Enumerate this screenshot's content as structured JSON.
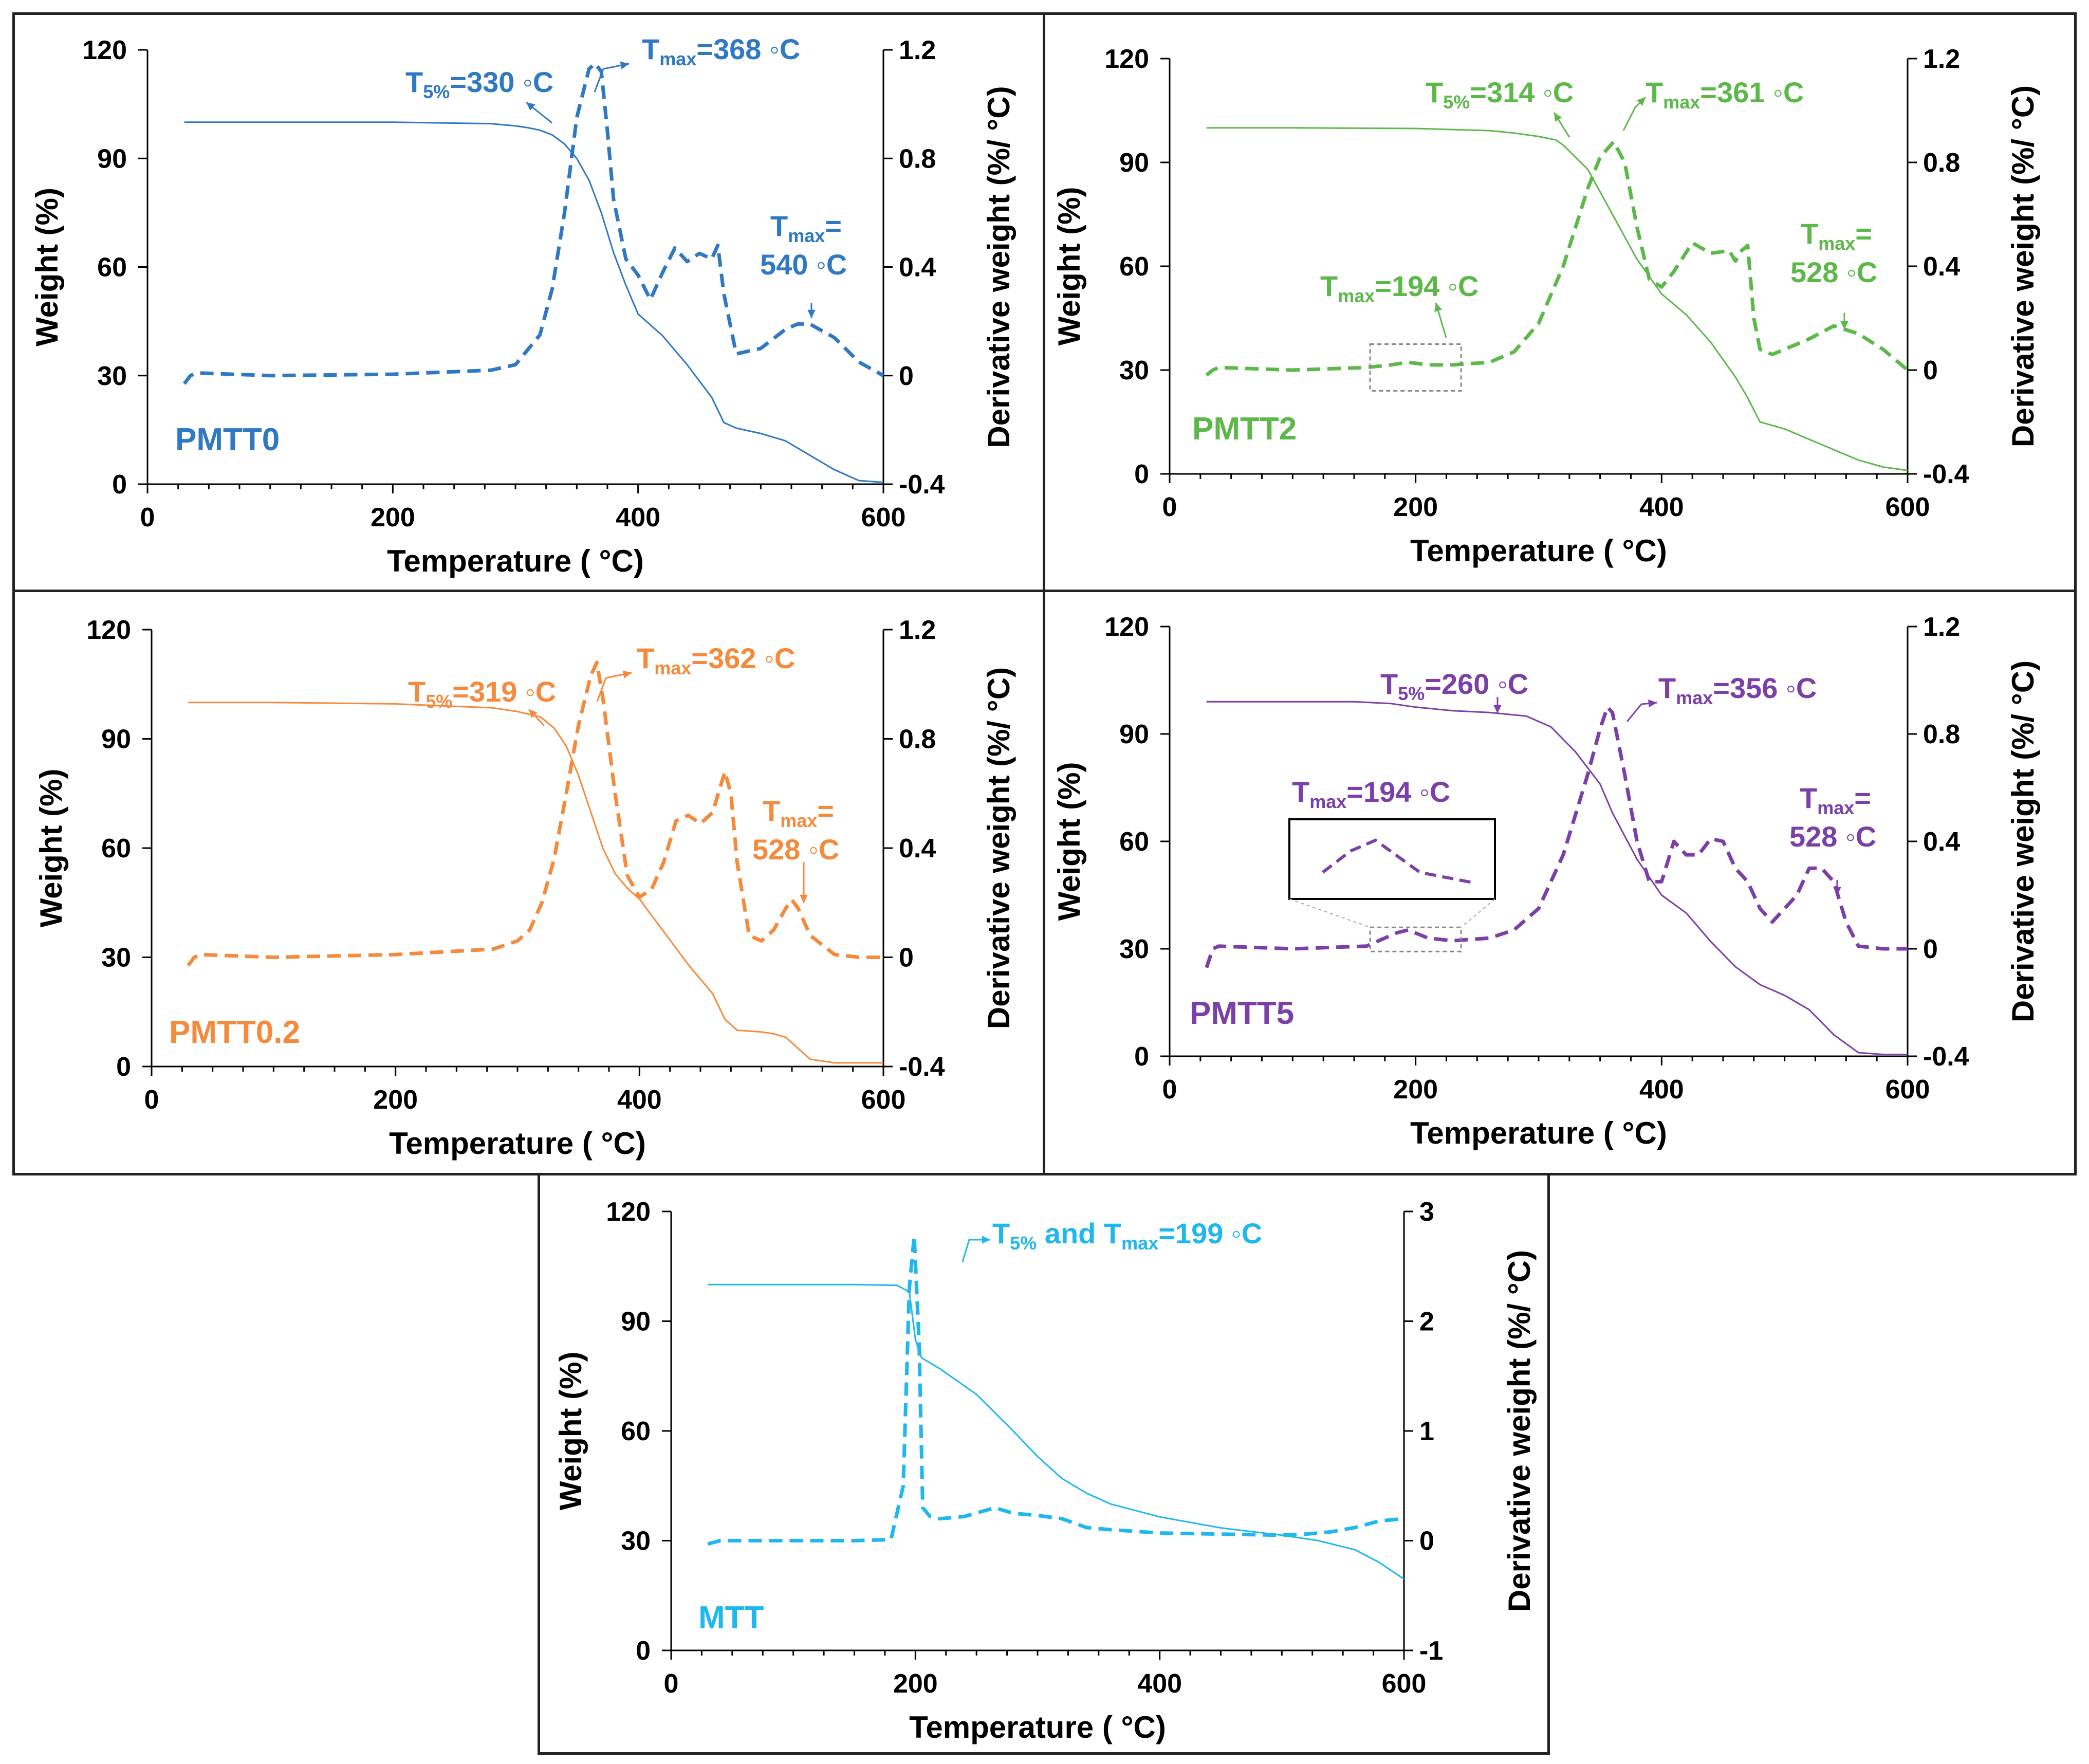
{
  "chart_data": [
    {
      "type": "line",
      "sample": "PMTT0",
      "color": "#2F78C4",
      "xlabel": "Temperature ( °C)",
      "ylabel": "Weight (%)",
      "y2label": "Derivative weight (%/ °C)",
      "xlim": [
        0,
        600
      ],
      "ylim": [
        0,
        120
      ],
      "y2lim": [
        -0.4,
        1.2
      ],
      "xticks": [
        0,
        200,
        400,
        600
      ],
      "yticks": [
        0,
        30,
        60,
        90,
        120
      ],
      "y2ticks": [
        -0.4,
        0,
        0.4,
        0.8,
        1.2
      ],
      "xtick_labels": [
        "0",
        "200",
        "400",
        "600"
      ],
      "ytick_labels": [
        "0",
        "30",
        "60",
        "90",
        "120"
      ],
      "y2tick_labels": [
        "-0.4",
        "0",
        "0.4",
        "0.8",
        "1.2"
      ],
      "series": [
        {
          "name": "Weight",
          "axis": "left",
          "style": "solid",
          "x": [
            30,
            100,
            200,
            280,
            300,
            310,
            320,
            330,
            340,
            350,
            360,
            370,
            380,
            390,
            400,
            420,
            440,
            460,
            470,
            480,
            500,
            520,
            540,
            560,
            580,
            600
          ],
          "values": [
            100,
            100,
            100,
            99.6,
            99,
            98.5,
            97.8,
            96.5,
            94,
            90,
            84,
            75,
            64,
            55,
            47,
            41,
            33,
            24,
            17,
            15.5,
            14,
            12,
            8,
            4,
            1,
            0.5
          ]
        },
        {
          "name": "Derivative weight",
          "axis": "right",
          "style": "dashed",
          "x": [
            30,
            35,
            40,
            100,
            200,
            280,
            300,
            320,
            330,
            340,
            350,
            360,
            365,
            370,
            375,
            380,
            390,
            400,
            410,
            420,
            430,
            440,
            450,
            460,
            465,
            470,
            480,
            500,
            520,
            530,
            540,
            560,
            580,
            600
          ],
          "values": [
            -0.03,
            0,
            0.01,
            0,
            0.005,
            0.02,
            0.04,
            0.15,
            0.32,
            0.6,
            0.95,
            1.13,
            1.15,
            1.12,
            0.9,
            0.65,
            0.43,
            0.37,
            0.28,
            0.38,
            0.47,
            0.42,
            0.45,
            0.43,
            0.48,
            0.3,
            0.08,
            0.1,
            0.17,
            0.19,
            0.19,
            0.14,
            0.05,
            0.0
          ]
        }
      ],
      "annotations": [
        {
          "base": "T",
          "sub": "5%",
          "rest": "=330 ◦C"
        },
        {
          "base": "T",
          "sub": "max",
          "rest": "=368 ◦C"
        },
        {
          "base": "T",
          "sub": "max",
          "rest": "=",
          "line2": "540 ◦C"
        }
      ]
    },
    {
      "type": "line",
      "sample": "PMTT2",
      "color": "#5DB84A",
      "xlabel": "Temperature ( °C)",
      "ylabel": "Weight (%)",
      "y2label": "Derivative weight (%/ °C)",
      "xlim": [
        0,
        600
      ],
      "ylim": [
        0,
        120
      ],
      "y2lim": [
        -0.4,
        1.2
      ],
      "xticks": [
        0,
        200,
        400,
        600
      ],
      "yticks": [
        0,
        30,
        60,
        90,
        120
      ],
      "y2ticks": [
        -0.4,
        0,
        0.4,
        0.8,
        1.2
      ],
      "xtick_labels": [
        "0",
        "200",
        "400",
        "600"
      ],
      "ytick_labels": [
        "0",
        "30",
        "60",
        "90",
        "120"
      ],
      "y2tick_labels": [
        "-0.4",
        "0",
        "0.4",
        "0.8",
        "1.2"
      ],
      "series": [
        {
          "name": "Weight",
          "axis": "left",
          "style": "solid",
          "x": [
            30,
            100,
            200,
            260,
            280,
            300,
            314,
            320,
            340,
            360,
            380,
            400,
            420,
            440,
            460,
            470,
            480,
            500,
            520,
            540,
            560,
            580,
            600
          ],
          "values": [
            100,
            100,
            99.8,
            99.2,
            98.5,
            97.5,
            96.5,
            95,
            88,
            75,
            62,
            52,
            46,
            38,
            28,
            22,
            15,
            13,
            10,
            7,
            4,
            2,
            1
          ]
        },
        {
          "name": "Derivative weight",
          "axis": "right",
          "style": "dashed",
          "x": [
            30,
            35,
            40,
            100,
            160,
            180,
            194,
            210,
            230,
            260,
            280,
            300,
            320,
            340,
            350,
            361,
            370,
            380,
            390,
            400,
            410,
            425,
            440,
            455,
            460,
            465,
            470,
            475,
            480,
            490,
            500,
            520,
            540,
            560,
            580,
            600
          ],
          "values": [
            -0.02,
            0,
            0.01,
            0.0,
            0.01,
            0.02,
            0.03,
            0.02,
            0.02,
            0.03,
            0.07,
            0.18,
            0.4,
            0.7,
            0.82,
            0.88,
            0.8,
            0.55,
            0.35,
            0.32,
            0.38,
            0.49,
            0.45,
            0.46,
            0.42,
            0.46,
            0.48,
            0.2,
            0.08,
            0.06,
            0.08,
            0.12,
            0.17,
            0.14,
            0.08,
            0.0
          ]
        }
      ],
      "annotations": [
        {
          "base": "T",
          "sub": "5%",
          "rest": "=314 ◦C"
        },
        {
          "base": "T",
          "sub": "max",
          "rest": "=361 ◦C"
        },
        {
          "base": "T",
          "sub": "max",
          "rest": "=194 ◦C"
        },
        {
          "base": "T",
          "sub": "max",
          "rest": "=",
          "line2": "528 ◦C"
        }
      ]
    },
    {
      "type": "line",
      "sample": "PMTT0.2",
      "color": "#F58A3C",
      "xlabel": "Temperature ( °C)",
      "ylabel": "Weight (%)",
      "y2label": "Derivative weight (%/ °C)",
      "xlim": [
        0,
        600
      ],
      "ylim": [
        0,
        120
      ],
      "y2lim": [
        -0.4,
        1.2
      ],
      "xticks": [
        0,
        200,
        400,
        600
      ],
      "yticks": [
        0,
        30,
        60,
        90,
        120
      ],
      "y2ticks": [
        -0.4,
        0,
        0.4,
        0.8,
        1.2
      ],
      "xtick_labels": [
        "0",
        "200",
        "400",
        "600"
      ],
      "ytick_labels": [
        "0",
        "30",
        "60",
        "90",
        "120"
      ],
      "y2tick_labels": [
        "-0.4",
        "0",
        "0.4",
        "0.8",
        "1.2"
      ],
      "series": [
        {
          "name": "Weight",
          "axis": "left",
          "style": "solid",
          "x": [
            30,
            100,
            200,
            280,
            300,
            319,
            330,
            340,
            350,
            360,
            370,
            380,
            390,
            400,
            420,
            440,
            460,
            470,
            480,
            500,
            510,
            520,
            530,
            540,
            560,
            580,
            600
          ],
          "values": [
            100,
            100,
            99.6,
            98.5,
            97.5,
            96,
            93,
            88,
            80,
            70,
            60,
            53,
            49,
            46,
            37,
            28,
            20,
            13,
            10,
            9.5,
            9,
            8,
            5,
            2,
            1,
            1,
            1
          ]
        },
        {
          "name": "Derivative weight",
          "axis": "right",
          "style": "dashed",
          "x": [
            30,
            35,
            40,
            100,
            200,
            280,
            300,
            310,
            320,
            330,
            340,
            350,
            360,
            365,
            370,
            380,
            390,
            400,
            410,
            420,
            430,
            440,
            450,
            460,
            470,
            475,
            480,
            490,
            500,
            510,
            520,
            525,
            530,
            540,
            560,
            580,
            600
          ],
          "values": [
            -0.03,
            0.0,
            0.01,
            0.0,
            0.01,
            0.03,
            0.06,
            0.1,
            0.2,
            0.36,
            0.6,
            0.85,
            1.03,
            1.08,
            0.95,
            0.6,
            0.3,
            0.22,
            0.25,
            0.35,
            0.5,
            0.52,
            0.49,
            0.53,
            0.68,
            0.6,
            0.35,
            0.08,
            0.06,
            0.1,
            0.18,
            0.21,
            0.18,
            0.08,
            0.01,
            0.0,
            0.0
          ]
        }
      ],
      "annotations": [
        {
          "base": "T",
          "sub": "5%",
          "rest": "=319 ◦C"
        },
        {
          "base": "T",
          "sub": "max",
          "rest": "=362 ◦C"
        },
        {
          "base": "T",
          "sub": "max",
          "rest": "=",
          "line2": "528 ◦C"
        }
      ]
    },
    {
      "type": "line",
      "sample": "PMTT5",
      "color": "#7B3FA8",
      "xlabel": "Temperature ( °C)",
      "ylabel": "Weight (%)",
      "y2label": "Derivative weight (%/ °C)",
      "xlim": [
        0,
        600
      ],
      "ylim": [
        0,
        120
      ],
      "y2lim": [
        -0.4,
        1.2
      ],
      "xticks": [
        0,
        200,
        400,
        600
      ],
      "yticks": [
        0,
        30,
        60,
        90,
        120
      ],
      "y2ticks": [
        -0.4,
        0,
        0.4,
        0.8,
        1.2
      ],
      "xtick_labels": [
        "0",
        "200",
        "400",
        "600"
      ],
      "ytick_labels": [
        "0",
        "30",
        "60",
        "90",
        "120"
      ],
      "y2tick_labels": [
        "-0.4",
        "0",
        "0.4",
        "0.8",
        "1.2"
      ],
      "series": [
        {
          "name": "Weight",
          "axis": "left",
          "style": "solid",
          "x": [
            30,
            100,
            150,
            180,
            200,
            230,
            260,
            290,
            310,
            330,
            350,
            360,
            380,
            400,
            420,
            440,
            460,
            480,
            500,
            520,
            540,
            560,
            580,
            600
          ],
          "values": [
            99,
            99,
            99,
            98.5,
            97.5,
            96.5,
            96,
            95,
            92,
            85,
            76,
            68,
            55,
            45,
            40,
            32,
            25,
            20,
            17,
            13,
            6,
            1,
            0.5,
            0.5
          ]
        },
        {
          "name": "Derivative weight",
          "axis": "right",
          "style": "dashed",
          "x": [
            30,
            35,
            40,
            100,
            160,
            175,
            185,
            194,
            210,
            230,
            260,
            280,
            300,
            320,
            330,
            340,
            350,
            356,
            360,
            370,
            380,
            390,
            400,
            410,
            420,
            430,
            440,
            450,
            460,
            470,
            480,
            490,
            500,
            510,
            520,
            530,
            540,
            550,
            560,
            580,
            600
          ],
          "values": [
            -0.07,
            0.0,
            0.01,
            0.0,
            0.01,
            0.04,
            0.06,
            0.07,
            0.04,
            0.03,
            0.04,
            0.07,
            0.15,
            0.35,
            0.5,
            0.65,
            0.82,
            0.9,
            0.88,
            0.65,
            0.4,
            0.25,
            0.25,
            0.4,
            0.35,
            0.35,
            0.41,
            0.4,
            0.3,
            0.25,
            0.15,
            0.1,
            0.15,
            0.2,
            0.3,
            0.3,
            0.25,
            0.1,
            0.01,
            0.0,
            0.0
          ]
        }
      ],
      "annotations": [
        {
          "base": "T",
          "sub": "5%",
          "rest": "=260 ◦C"
        },
        {
          "base": "T",
          "sub": "max",
          "rest": "=356 ◦C"
        },
        {
          "base": "T",
          "sub": "max",
          "rest": "=194 ◦C"
        },
        {
          "base": "T",
          "sub": "max",
          "rest": "=",
          "line2": "528 ◦C"
        }
      ]
    },
    {
      "type": "line",
      "sample": "MTT",
      "color": "#1FB8EE",
      "xlabel": "Temperature ( °C)",
      "ylabel": "Weight (%)",
      "y2label": "Derivative weight (%/ °C)",
      "xlim": [
        0,
        600
      ],
      "ylim": [
        0,
        120
      ],
      "y2lim": [
        -1,
        3
      ],
      "xticks": [
        0,
        200,
        400,
        600
      ],
      "yticks": [
        0,
        30,
        60,
        90,
        120
      ],
      "y2ticks": [
        -1,
        0,
        1,
        2,
        3
      ],
      "xtick_labels": [
        "0",
        "200",
        "400",
        "600"
      ],
      "ytick_labels": [
        "0",
        "30",
        "60",
        "90",
        "120"
      ],
      "y2tick_labels": [
        "-1",
        "0",
        "1",
        "2",
        "3"
      ],
      "series": [
        {
          "name": "Weight",
          "axis": "left",
          "style": "solid",
          "x": [
            30,
            100,
            150,
            185,
            195,
            200,
            205,
            220,
            250,
            280,
            300,
            320,
            340,
            360,
            400,
            450,
            500,
            530,
            560,
            580,
            600
          ],
          "values": [
            100,
            100,
            100,
            99.8,
            98,
            85,
            80,
            77,
            70,
            60,
            53,
            47,
            43,
            40,
            36.5,
            33.5,
            31.5,
            30,
            27.5,
            24,
            19.5
          ]
        },
        {
          "name": "Derivative weight",
          "axis": "right",
          "style": "dashed",
          "x": [
            30,
            40,
            100,
            150,
            180,
            190,
            195,
            199,
            203,
            206,
            212,
            220,
            240,
            265,
            280,
            300,
            320,
            340,
            360,
            400,
            450,
            500,
            520,
            540,
            560,
            580,
            600
          ],
          "values": [
            -0.03,
            0,
            0,
            0,
            0.01,
            0.5,
            2.3,
            2.78,
            1.8,
            0.3,
            0.22,
            0.2,
            0.22,
            0.3,
            0.25,
            0.23,
            0.2,
            0.12,
            0.1,
            0.07,
            0.06,
            0.05,
            0.06,
            0.08,
            0.12,
            0.18,
            0.2
          ]
        }
      ],
      "annotations": [
        {
          "base": "T",
          "sub": "5%",
          "rest": " and ",
          "base2": "T",
          "sub2": "max",
          "rest2": "=199 ◦C"
        }
      ]
    }
  ]
}
